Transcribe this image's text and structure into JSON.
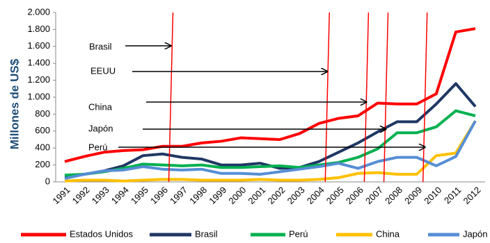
{
  "chart_data": {
    "type": "line",
    "y_label": "Millones de US$",
    "categories": [
      "1991",
      "1992",
      "1993",
      "1994",
      "1995",
      "1996",
      "1997",
      "1998",
      "1999",
      "2000",
      "2001",
      "2002",
      "2003",
      "2004",
      "2005",
      "2006",
      "2007",
      "2008",
      "2009",
      "2010",
      "2011",
      "2012"
    ],
    "series": [
      {
        "name": "Estados Unidos",
        "color": "#ff0000",
        "values": [
          240,
          300,
          350,
          370,
          380,
          420,
          420,
          460,
          480,
          520,
          510,
          500,
          570,
          690,
          750,
          780,
          930,
          920,
          920,
          1040,
          1770,
          1810
        ]
      },
      {
        "name": "Brasil",
        "color": "#1f3864",
        "values": [
          70,
          90,
          130,
          190,
          310,
          330,
          290,
          270,
          200,
          200,
          220,
          160,
          170,
          240,
          350,
          460,
          590,
          710,
          710,
          920,
          1160,
          890
        ]
      },
      {
        "name": "Perú",
        "color": "#00b050",
        "values": [
          80,
          90,
          120,
          160,
          210,
          200,
          190,
          200,
          170,
          170,
          180,
          190,
          170,
          200,
          230,
          290,
          390,
          580,
          580,
          650,
          840,
          780
        ]
      },
      {
        "name": "China",
        "color": "#ffc000",
        "values": [
          10,
          20,
          20,
          10,
          20,
          30,
          30,
          20,
          20,
          20,
          30,
          20,
          20,
          30,
          50,
          100,
          110,
          90,
          90,
          310,
          340,
          720
        ]
      },
      {
        "name": "Japón",
        "color": "#558ed5",
        "values": [
          40,
          90,
          130,
          140,
          180,
          150,
          140,
          150,
          100,
          100,
          90,
          120,
          150,
          180,
          220,
          160,
          240,
          290,
          290,
          190,
          300,
          720
        ]
      }
    ],
    "ylim": [
      0,
      2000
    ],
    "yticks": [
      0,
      200,
      400,
      600,
      800,
      {
        "value": 1000,
        "label": "1.000"
      },
      {
        "value": 1200,
        "label": "1.200"
      },
      {
        "value": 1400,
        "label": "1.400"
      },
      {
        "value": 1600,
        "label": "1.600"
      },
      {
        "value": 1800,
        "label": "1.800"
      },
      {
        "value": 2000,
        "label": "2.000"
      }
    ],
    "annotations": [
      {
        "text": "Brasil",
        "category": "1996"
      },
      {
        "text": "EEUU",
        "category": "2004"
      },
      {
        "text": "China",
        "category": "2006"
      },
      {
        "text": "Japón",
        "category": "2007"
      },
      {
        "text": "Perú",
        "category": "2009"
      }
    ],
    "legend": "bottom"
  }
}
